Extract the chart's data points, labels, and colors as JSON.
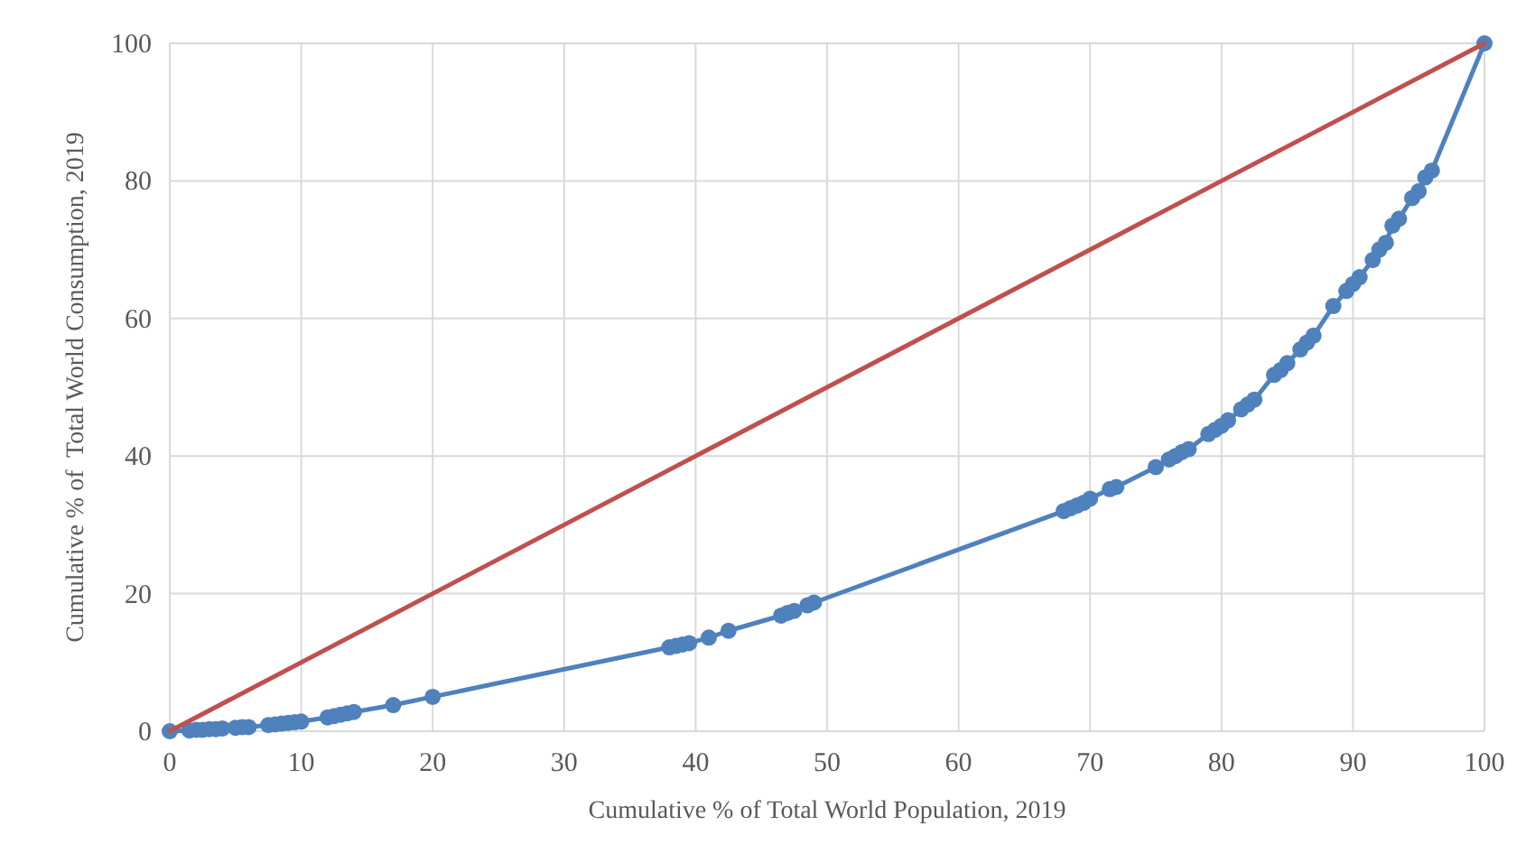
{
  "chart_data": {
    "type": "line",
    "xlabel": "Cumulative % of Total World Population, 2019",
    "ylabel": "Cumulative % of  Total World Consumption, 2019",
    "xlim": [
      0,
      100
    ],
    "ylim": [
      0,
      100
    ],
    "xticks": [
      0,
      10,
      20,
      30,
      40,
      50,
      60,
      70,
      80,
      90,
      100
    ],
    "yticks": [
      0,
      20,
      40,
      60,
      80,
      100
    ],
    "grid": true,
    "series": [
      {
        "color": "#4f81bd",
        "marker": "circle",
        "x": [
          0,
          1.5,
          2,
          2.5,
          3,
          3.5,
          4,
          5,
          5.5,
          6,
          7.5,
          8,
          8.5,
          9,
          9.5,
          10,
          12,
          12.5,
          13,
          13.5,
          14,
          17,
          20,
          38,
          38.5,
          39,
          39.5,
          41,
          42.5,
          46.5,
          47,
          47.5,
          48.5,
          49,
          68,
          68.5,
          69,
          69.5,
          70,
          71.5,
          72,
          75,
          76,
          76.5,
          77,
          77.5,
          79,
          79.5,
          80,
          80.5,
          81.5,
          82,
          82.5,
          84,
          84.5,
          85,
          86,
          86.5,
          87,
          88.5,
          89.5,
          90,
          90.5,
          91.5,
          92,
          92.5,
          93,
          93.5,
          94.5,
          95,
          95.5,
          96,
          100
        ],
        "values": [
          0,
          0.1,
          0.2,
          0.2,
          0.3,
          0.3,
          0.4,
          0.5,
          0.6,
          0.6,
          0.9,
          1.0,
          1.1,
          1.2,
          1.3,
          1.4,
          2.0,
          2.2,
          2.4,
          2.6,
          2.8,
          3.8,
          5.0,
          12.2,
          12.4,
          12.6,
          12.8,
          13.6,
          14.6,
          16.8,
          17.2,
          17.5,
          18.3,
          18.7,
          32,
          32.4,
          32.8,
          33.2,
          33.8,
          35.2,
          35.5,
          38.4,
          39.5,
          40,
          40.6,
          41,
          43.2,
          43.8,
          44.4,
          45.2,
          46.8,
          47.5,
          48.2,
          51.8,
          52.5,
          53.5,
          55.5,
          56.5,
          57.5,
          61.8,
          64,
          65,
          66,
          68.5,
          70,
          71,
          73.5,
          74.5,
          77.5,
          78.5,
          80.5,
          81.5,
          100
        ]
      },
      {
        "color": "#c0504d",
        "marker": "none",
        "x": [
          0,
          100
        ],
        "values": [
          0,
          100
        ]
      }
    ]
  }
}
